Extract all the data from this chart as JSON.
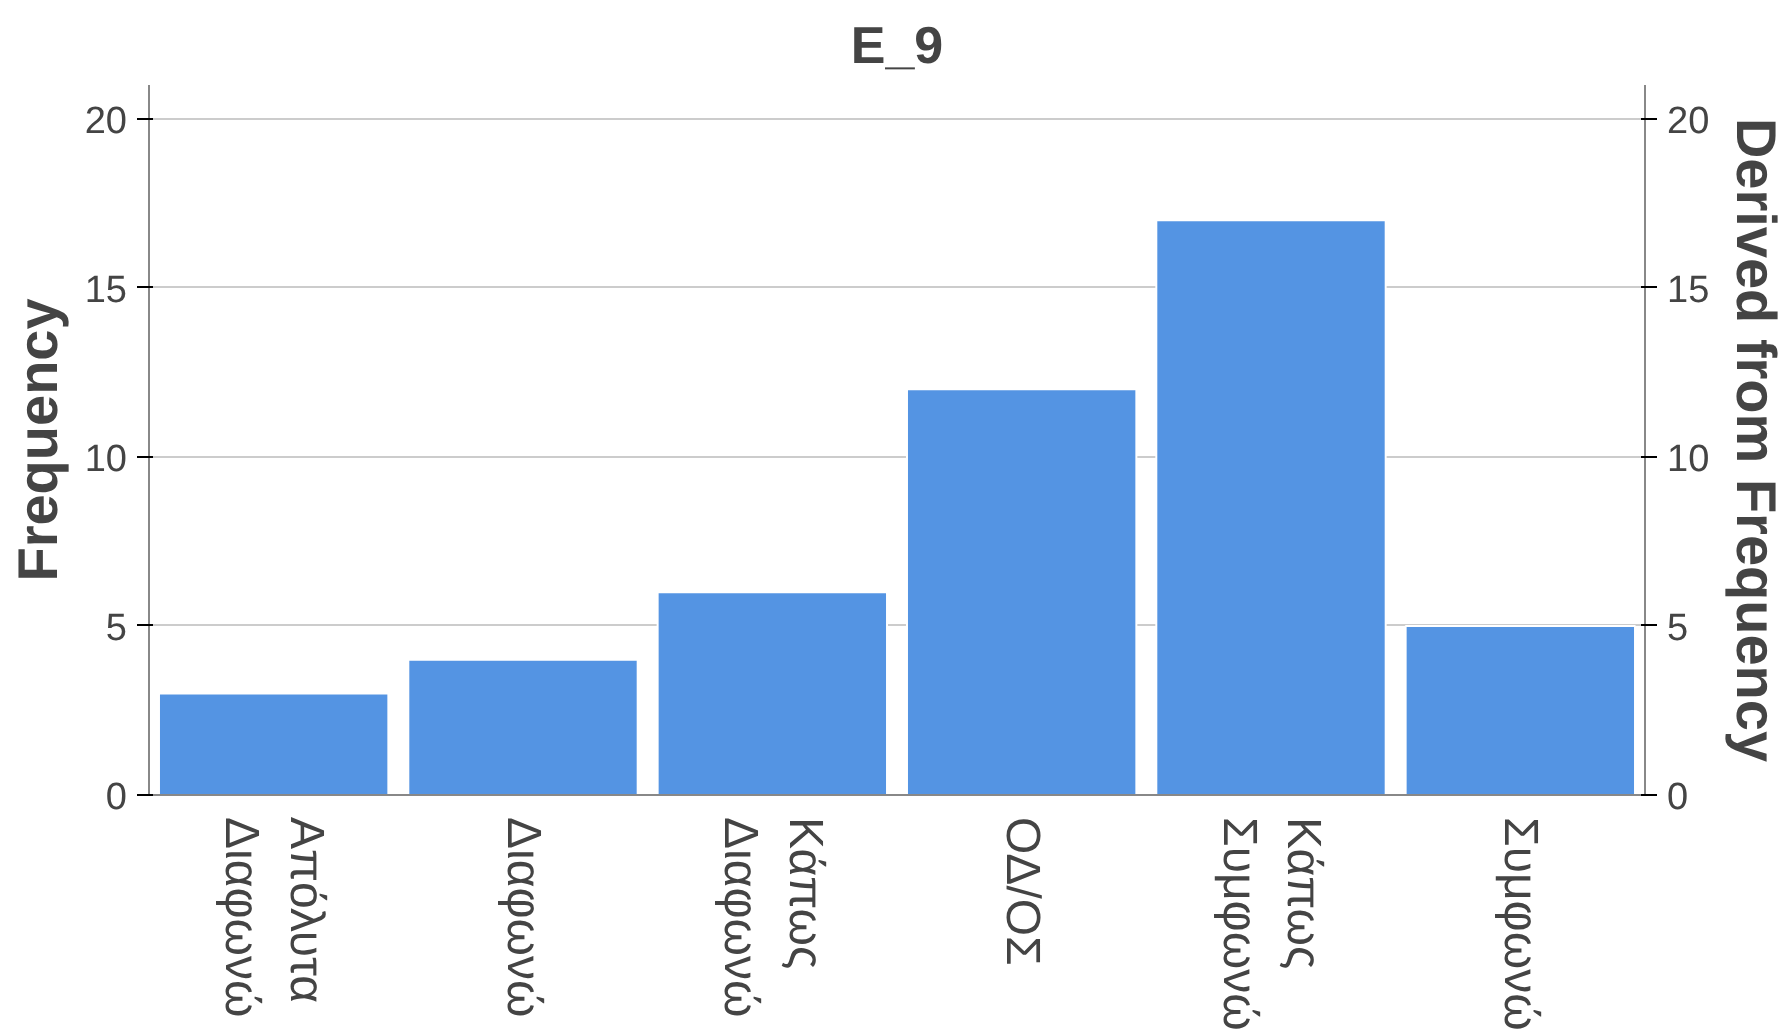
{
  "chart_data": {
    "type": "bar",
    "title": "E_9",
    "categories": [
      "Απόλυτα Διαφωνώ",
      "Διαφωνώ",
      "Κάπως Διαφωνώ",
      "ΟΔ/ΟΣ",
      "Κάπως Συμφωνώ",
      "Συμφωνώ"
    ],
    "values": [
      3,
      4,
      6,
      12,
      17,
      5
    ],
    "color": "#5494e3",
    "ylabel": "Frequency",
    "y2label": "Derived from Frequency",
    "ylim": [
      0,
      21
    ],
    "yticks": [
      0,
      5,
      10,
      15,
      20
    ],
    "y2lim": [
      0,
      21
    ],
    "y2ticks": [
      0,
      5,
      10,
      15,
      20
    ],
    "grid": "y"
  }
}
